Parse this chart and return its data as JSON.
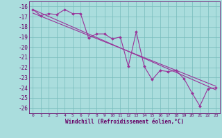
{
  "xlabel": "Windchill (Refroidissement éolien,°C)",
  "x": [
    0,
    1,
    2,
    3,
    4,
    5,
    6,
    7,
    8,
    9,
    10,
    11,
    12,
    13,
    14,
    15,
    16,
    17,
    18,
    19,
    20,
    21,
    22,
    23
  ],
  "y_main": [
    -16.3,
    -16.9,
    -16.7,
    -16.8,
    -16.3,
    -16.7,
    -16.7,
    -19.1,
    -18.7,
    -18.7,
    -19.2,
    -19.0,
    -21.9,
    -18.5,
    -21.9,
    -23.2,
    -22.3,
    -22.4,
    -22.3,
    -23.1,
    -24.5,
    -25.8,
    -24.1,
    -24.0
  ],
  "trend1_x": [
    0,
    23
  ],
  "trend1_y": [
    -16.3,
    -24.2
  ],
  "trend2_x": [
    0,
    23
  ],
  "trend2_y": [
    -16.65,
    -23.85
  ],
  "line_color": "#993399",
  "bg_color": "#aadddd",
  "grid_color": "#77bbbb",
  "text_color": "#660066",
  "ylim": [
    -26.5,
    -15.5
  ],
  "xlim": [
    -0.5,
    23.5
  ],
  "yticks": [
    -16,
    -17,
    -18,
    -19,
    -20,
    -21,
    -22,
    -23,
    -24,
    -25,
    -26
  ],
  "xticks": [
    0,
    1,
    2,
    3,
    4,
    5,
    6,
    7,
    8,
    9,
    10,
    11,
    12,
    13,
    14,
    15,
    16,
    17,
    18,
    19,
    20,
    21,
    22,
    23
  ]
}
